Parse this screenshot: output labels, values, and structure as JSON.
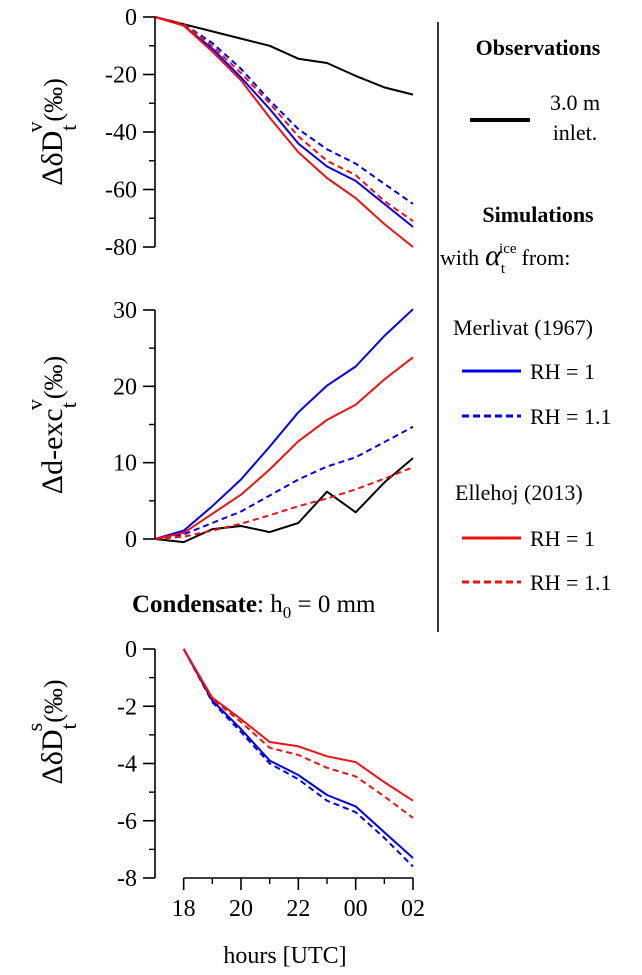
{
  "legend": {
    "observations_title": "Observations",
    "obs_line1": "3.0 m",
    "obs_line2": "inlet.",
    "simulations_title": "Simulations",
    "with_prefix": "with",
    "alpha_symbol": "α",
    "alpha_sub": "t",
    "alpha_sup": "ice",
    "from_suffix": "from:",
    "group1_title": "Merlivat (1967)",
    "group1_rh1": "RH = 1",
    "group1_rh11": "RH = 1.1",
    "group2_title": "Ellehoj (2013)",
    "group2_rh1": "RH = 1",
    "group2_rh11": "RH = 1.1"
  },
  "panel3_title": {
    "bold": "Condensate",
    "rest": ": h",
    "sub": "0",
    "tail": " = 0 mm"
  },
  "colors": {
    "observations": "#000000",
    "merlivat": "#0000ee",
    "ellehoj": "#ee1111"
  },
  "chart_data": [
    {
      "type": "line",
      "ylabel": "ΔδD_t^v(‰)",
      "ylim": [
        -80,
        0
      ],
      "yticks": [
        "0",
        "-20",
        "-40",
        "-60",
        "-80"
      ],
      "ytick_values": [
        0,
        -20,
        -40,
        -60,
        -80
      ],
      "x": [
        17,
        18,
        19,
        20,
        21,
        22,
        23,
        24,
        25,
        26
      ],
      "series": [
        {
          "name": "3.0 m inlet.",
          "style": "solid",
          "color": "#000000",
          "values": [
            0,
            -2.5,
            -5,
            -7.5,
            -10,
            -14.5,
            -16,
            -20.5,
            -24.5,
            -27
          ]
        },
        {
          "name": "Merlivat (1967) RH = 1",
          "style": "solid",
          "color": "#0000ee",
          "values": [
            0,
            -3,
            -11,
            -21,
            -32,
            -44,
            -52,
            -57,
            -65,
            -73
          ]
        },
        {
          "name": "Merlivat (1967) RH = 1.1",
          "style": "dashed",
          "color": "#0000ee",
          "values": [
            0,
            -2.5,
            -9,
            -18,
            -29,
            -39,
            -46,
            -51,
            -58,
            -65
          ]
        },
        {
          "name": "Ellehoj (2013) RH = 1",
          "style": "solid",
          "color": "#ee1111",
          "values": [
            0,
            -3,
            -12,
            -22,
            -35,
            -47,
            -56,
            -63,
            -72,
            -80
          ]
        },
        {
          "name": "Ellehoj (2013) RH = 1.1",
          "style": "dashed",
          "color": "#ee1111",
          "values": [
            0,
            -2.5,
            -10,
            -19.5,
            -30,
            -41.5,
            -50,
            -55,
            -64,
            -71
          ]
        }
      ]
    },
    {
      "type": "line",
      "ylabel": "Δd-exc_t^v(‰)",
      "ylim": [
        0,
        30
      ],
      "yticks": [
        "30",
        "20",
        "10",
        "0"
      ],
      "ytick_values": [
        30,
        20,
        10,
        0
      ],
      "x": [
        17,
        18,
        19,
        20,
        21,
        22,
        23,
        24,
        25,
        26
      ],
      "series": [
        {
          "name": "3.0 m inlet.",
          "style": "solid",
          "color": "#000000",
          "values": [
            0,
            -0.4,
            1.3,
            1.7,
            0.9,
            2.1,
            6.2,
            3.5,
            7.4,
            10.6
          ]
        },
        {
          "name": "Merlivat (1967) RH = 1",
          "style": "solid",
          "color": "#0000ee",
          "values": [
            0,
            1.1,
            4.3,
            7.8,
            12.1,
            16.6,
            20.1,
            22.6,
            26.6,
            30.1
          ]
        },
        {
          "name": "Merlivat (1967) RH = 1.1",
          "style": "dashed",
          "color": "#0000ee",
          "values": [
            0,
            0.6,
            2.1,
            3.6,
            5.7,
            7.8,
            9.5,
            10.7,
            12.7,
            14.7
          ]
        },
        {
          "name": "Ellehoj (2013) RH = 1",
          "style": "solid",
          "color": "#ee1111",
          "values": [
            0,
            0.8,
            3.3,
            5.8,
            9.1,
            12.8,
            15.6,
            17.6,
            20.9,
            23.8
          ]
        },
        {
          "name": "Ellehoj (2013) RH = 1.1",
          "style": "dashed",
          "color": "#ee1111",
          "values": [
            0,
            0.3,
            1.1,
            2.0,
            3.1,
            4.3,
            5.3,
            6.5,
            7.9,
            9.4
          ]
        }
      ]
    },
    {
      "type": "line",
      "ylabel": "ΔδD_t^s(‰)",
      "xlabel": "hours [UTC]",
      "ylim": [
        -8,
        0
      ],
      "yticks": [
        "0",
        "-2",
        "-4",
        "-6",
        "-8"
      ],
      "ytick_values": [
        0,
        -2,
        -4,
        -6,
        -8
      ],
      "xticks": [
        "18",
        "20",
        "22",
        "00",
        "02"
      ],
      "xtick_values": [
        18,
        20,
        22,
        24,
        26
      ],
      "x": [
        18,
        19,
        20,
        21,
        22,
        23,
        24,
        25,
        26
      ],
      "series": [
        {
          "name": "Merlivat (1967) RH = 1",
          "style": "solid",
          "color": "#0000ee",
          "values": [
            0,
            -1.8,
            -2.8,
            -3.9,
            -4.4,
            -5.1,
            -5.5,
            -6.4,
            -7.3
          ]
        },
        {
          "name": "Merlivat (1967) RH = 1.1",
          "style": "dashed",
          "color": "#0000ee",
          "values": [
            0,
            -1.85,
            -2.9,
            -4.0,
            -4.55,
            -5.3,
            -5.7,
            -6.6,
            -7.6
          ]
        },
        {
          "name": "Ellehoj (2013) RH = 1",
          "style": "solid",
          "color": "#ee1111",
          "values": [
            0,
            -1.7,
            -2.45,
            -3.25,
            -3.4,
            -3.75,
            -3.95,
            -4.65,
            -5.3
          ]
        },
        {
          "name": "Ellehoj (2013) RH = 1.1",
          "style": "dashed",
          "color": "#ee1111",
          "values": [
            0,
            -1.75,
            -2.55,
            -3.45,
            -3.7,
            -4.15,
            -4.45,
            -5.15,
            -5.9
          ]
        }
      ]
    }
  ]
}
